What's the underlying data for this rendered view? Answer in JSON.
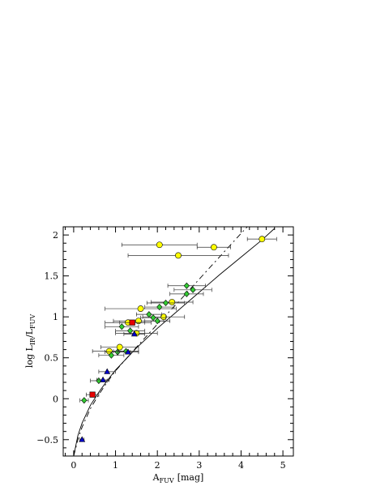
{
  "chart_data": {
    "type": "scatter",
    "title": "",
    "xlabel": {
      "main": "A",
      "sub": "FUV",
      "unit": "[mag]"
    },
    "ylabel": {
      "main": "log  L",
      "sub1": "IR",
      "mid": "/L",
      "sub2": "FUV"
    },
    "xlim": [
      -0.25,
      5.25
    ],
    "ylim": [
      -0.7,
      2.1
    ],
    "x_ticks": [
      0,
      1,
      2,
      3,
      4,
      5
    ],
    "x_tick_labels": [
      "0",
      "1",
      "2",
      "3",
      "4",
      "5"
    ],
    "y_ticks": [
      -0.5,
      0,
      0.5,
      1,
      1.5,
      2
    ],
    "y_tick_labels": [
      "−0.5",
      "0",
      "0.5",
      "1",
      "1.5",
      "2"
    ],
    "grid": false,
    "legend": "none",
    "colors": {
      "yellow": "#ffff00",
      "green": "#33cc33",
      "red": "#e60000",
      "blue": "#0000cc",
      "line": "#000000",
      "errorbar": "#333333"
    },
    "series": [
      {
        "marker": "circle",
        "color": "#ffff00",
        "points": [
          {
            "x": 2.05,
            "y": 1.88,
            "xerr": 0.9
          },
          {
            "x": 3.35,
            "y": 1.85,
            "xerr": 0.4
          },
          {
            "x": 2.5,
            "y": 1.75,
            "xerr": 1.2
          },
          {
            "x": 4.5,
            "y": 1.95,
            "xerr": 0.35
          },
          {
            "x": 1.6,
            "y": 1.1,
            "xerr": 0.85
          },
          {
            "x": 2.35,
            "y": 1.18,
            "xerr": 0.5
          },
          {
            "x": 1.55,
            "y": 0.95,
            "xerr": 0.6
          },
          {
            "x": 1.3,
            "y": 0.93,
            "xerr": 0.55
          },
          {
            "x": 1.1,
            "y": 0.63,
            "xerr": 0.45
          },
          {
            "x": 0.85,
            "y": 0.58,
            "xerr": 0.4
          },
          {
            "x": 1.5,
            "y": 0.8,
            "xerr": 0.5
          },
          {
            "x": 2.15,
            "y": 1.0,
            "xerr": 0.5
          }
        ]
      },
      {
        "marker": "diamond",
        "color": "#33cc33",
        "points": [
          {
            "x": 2.7,
            "y": 1.38,
            "xerr": 0.45
          },
          {
            "x": 2.85,
            "y": 1.33,
            "xerr": 0.45
          },
          {
            "x": 2.7,
            "y": 1.28,
            "xerr": 0.4
          },
          {
            "x": 2.2,
            "y": 1.17,
            "xerr": 0.45
          },
          {
            "x": 2.05,
            "y": 1.12,
            "xerr": 0.35
          },
          {
            "x": 1.8,
            "y": 1.03,
            "xerr": 0.3
          },
          {
            "x": 1.9,
            "y": 0.99,
            "xerr": 0.3
          },
          {
            "x": 2.0,
            "y": 0.95,
            "xerr": 0.3
          },
          {
            "x": 1.15,
            "y": 0.88,
            "xerr": 0.4
          },
          {
            "x": 1.35,
            "y": 0.83,
            "xerr": 0.35
          },
          {
            "x": 1.05,
            "y": 0.57,
            "xerr": 0.3
          },
          {
            "x": 1.25,
            "y": 0.58,
            "xerr": 0.3
          },
          {
            "x": 0.9,
            "y": 0.53,
            "xerr": 0.3
          },
          {
            "x": 0.6,
            "y": 0.22,
            "xerr": 0.2
          },
          {
            "x": 0.25,
            "y": -0.02,
            "xerr": 0.1
          }
        ]
      },
      {
        "marker": "square",
        "color": "#e60000",
        "points": [
          {
            "x": 1.4,
            "y": 0.93,
            "xerr": 0.3
          },
          {
            "x": 0.45,
            "y": 0.05,
            "xerr": 0.15
          }
        ]
      },
      {
        "marker": "triangle",
        "color": "#0000cc",
        "points": [
          {
            "x": 1.45,
            "y": 0.79,
            "xerr": 0.25
          },
          {
            "x": 1.3,
            "y": 0.57,
            "xerr": 0.25
          },
          {
            "x": 0.8,
            "y": 0.33,
            "xerr": 0.2
          },
          {
            "x": 0.7,
            "y": 0.23,
            "xerr": 0.15
          },
          {
            "x": 0.2,
            "y": -0.5,
            "xerr": 0.05
          }
        ]
      }
    ],
    "curves": [
      {
        "style": "solid",
        "points": [
          [
            0.0,
            -0.7
          ],
          [
            0.1,
            -0.45
          ],
          [
            0.2,
            -0.3
          ],
          [
            0.4,
            -0.08
          ],
          [
            0.6,
            0.08
          ],
          [
            0.8,
            0.22
          ],
          [
            1.0,
            0.35
          ],
          [
            1.5,
            0.62
          ],
          [
            2.0,
            0.86
          ],
          [
            2.5,
            1.08
          ],
          [
            3.0,
            1.3
          ],
          [
            3.5,
            1.52
          ],
          [
            4.0,
            1.73
          ],
          [
            4.5,
            1.94
          ],
          [
            4.8,
            2.08
          ]
        ]
      },
      {
        "style": "dashed",
        "points": [
          [
            0.0,
            -0.7
          ],
          [
            0.1,
            -0.5
          ],
          [
            0.2,
            -0.35
          ],
          [
            0.4,
            -0.12
          ],
          [
            0.6,
            0.05
          ],
          [
            0.8,
            0.2
          ],
          [
            1.0,
            0.34
          ],
          [
            1.5,
            0.63
          ],
          [
            2.0,
            0.91
          ],
          [
            2.5,
            1.18
          ],
          [
            3.0,
            1.46
          ],
          [
            3.5,
            1.74
          ],
          [
            4.0,
            2.02
          ],
          [
            4.15,
            2.1
          ]
        ]
      }
    ]
  }
}
